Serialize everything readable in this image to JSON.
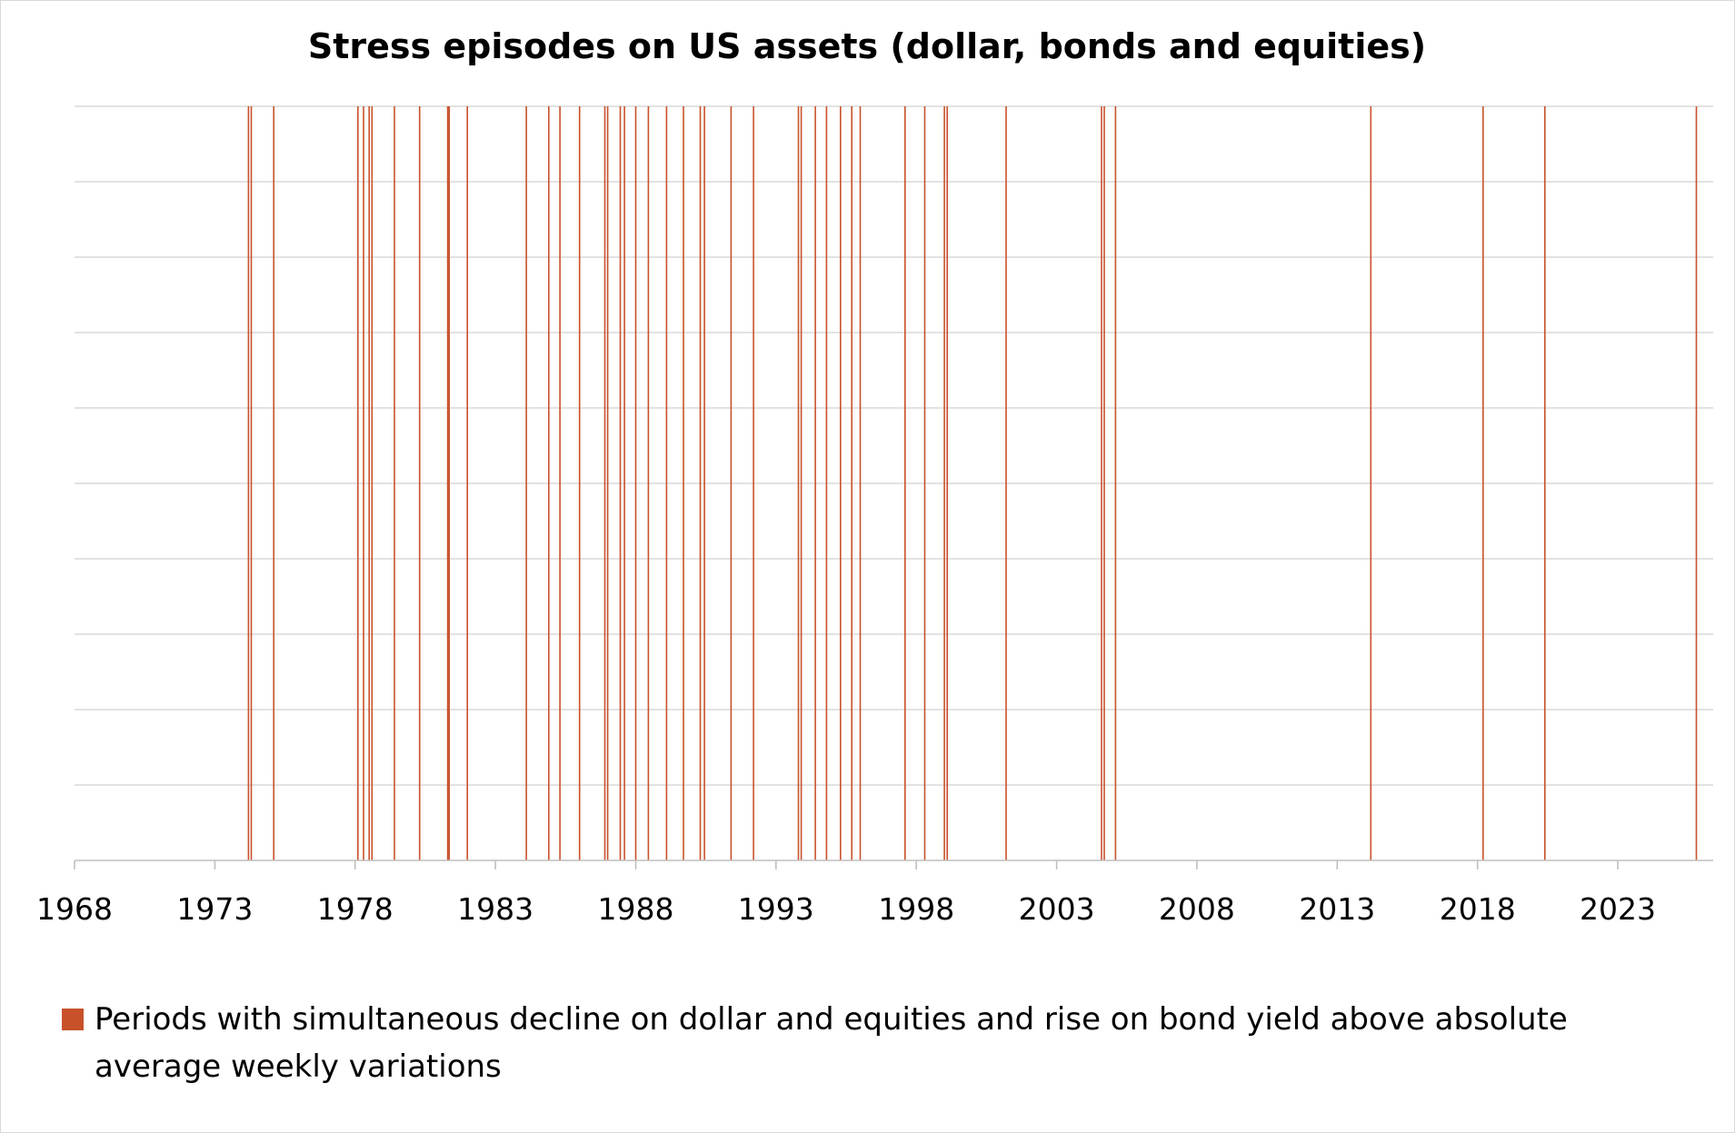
{
  "chart_data": {
    "type": "bar",
    "title": "Stress episodes on US assets (dollar, bonds and equities)",
    "xlabel": "",
    "ylabel": "",
    "xlim": [
      1968,
      2026.4
    ],
    "x_ticks": [
      "1968",
      "1973",
      "1978",
      "1983",
      "1988",
      "1993",
      "1998",
      "2003",
      "2008",
      "2013",
      "2018",
      "2023"
    ],
    "y_tick_labels_shown": false,
    "grid": true,
    "horizontal_gridlines": 10,
    "legend_position": "bottom",
    "series": [
      {
        "name": "Periods with simultaneous decline on dollar and equities and rise on bond yield above absolute average weekly variations",
        "color": "#c8512a",
        "value": 1,
        "episode_years": [
          1974.2,
          1974.3,
          1975.1,
          1978.1,
          1978.3,
          1978.5,
          1978.6,
          1979.4,
          1980.3,
          1981.3,
          1981.35,
          1982.0,
          1984.1,
          1984.9,
          1985.3,
          1986.0,
          1986.9,
          1987.0,
          1987.45,
          1987.6,
          1988.0,
          1988.45,
          1989.1,
          1989.7,
          1990.3,
          1990.45,
          1991.4,
          1992.2,
          1993.8,
          1993.9,
          1994.4,
          1994.8,
          1995.3,
          1995.7,
          1996.0,
          1997.6,
          1998.3,
          1999.0,
          1999.1,
          2001.2,
          2004.6,
          2004.7,
          2005.1,
          2014.2,
          2018.2,
          2020.4,
          2025.8
        ]
      }
    ]
  }
}
